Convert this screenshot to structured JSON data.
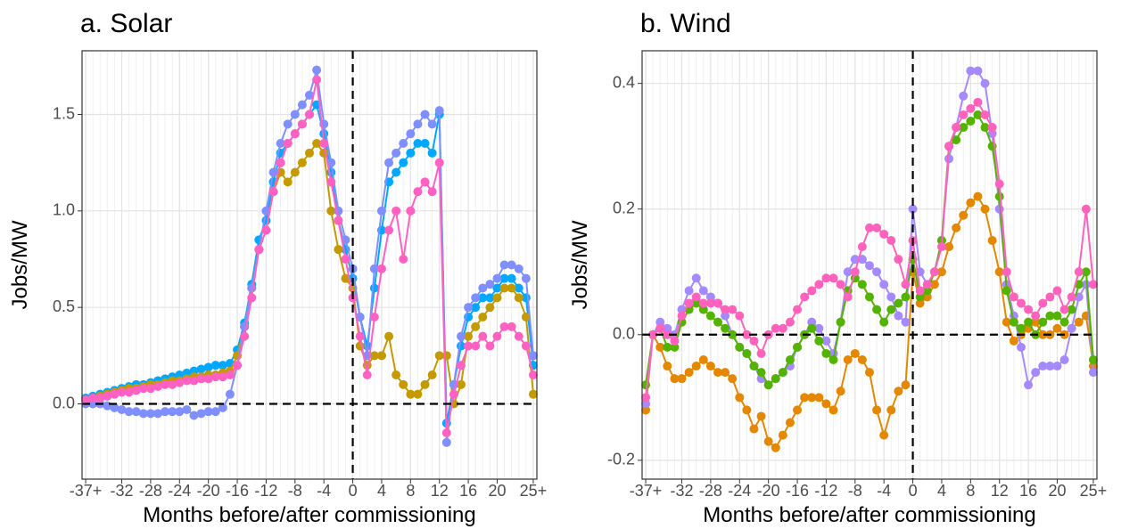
{
  "chart_data": [
    {
      "type": "line",
      "title": "a. Solar",
      "xlabel": "Months before/after commissioning",
      "ylabel": "Jobs/MW",
      "x": [
        -37,
        -36,
        -35,
        -34,
        -33,
        -32,
        -31,
        -30,
        -29,
        -28,
        -27,
        -26,
        -25,
        -24,
        -23,
        -22,
        -21,
        -20,
        -19,
        -18,
        -17,
        -16,
        -15,
        -14,
        -13,
        -12,
        -11,
        -10,
        -9,
        -8,
        -7,
        -6,
        -5,
        -4,
        -3,
        -2,
        -1,
        0,
        1,
        2,
        3,
        4,
        5,
        6,
        7,
        8,
        9,
        10,
        11,
        12,
        13,
        14,
        15,
        16,
        17,
        18,
        19,
        20,
        21,
        22,
        23,
        24,
        25
      ],
      "xlim": [
        -37.5,
        25.5
      ],
      "xticks": [
        {
          "value": -37,
          "label": "-37+"
        },
        -32,
        -28,
        -24,
        -20,
        -16,
        -12,
        -8,
        -4,
        0,
        4,
        8,
        12,
        16,
        20,
        {
          "value": 25,
          "label": "25+"
        }
      ],
      "ylim": [
        -0.39,
        1.83
      ],
      "yticks": [
        {
          "value": 0,
          "label": "0.0"
        },
        0.5,
        {
          "value": 1,
          "label": "1.0"
        },
        1.5
      ],
      "hline": 0,
      "vline": 0,
      "grid": true,
      "series": [
        {
          "color": "#00A9FF",
          "values": [
            0.03,
            0.04,
            0.05,
            0.06,
            0.07,
            0.08,
            0.09,
            0.1,
            0.1,
            0.11,
            0.12,
            0.13,
            0.14,
            0.15,
            0.16,
            0.17,
            0.18,
            0.19,
            0.2,
            0.2,
            0.21,
            0.28,
            0.42,
            0.62,
            0.85,
            0.95,
            1.15,
            1.3,
            1.35,
            1.4,
            1.45,
            1.5,
            1.55,
            1.4,
            1.2,
            0.95,
            0.8,
            0.65,
            0.45,
            0.3,
            0.6,
            0.9,
            1.15,
            1.2,
            1.25,
            1.3,
            1.35,
            1.35,
            1.3,
            1.5,
            -0.1,
            0.1,
            0.3,
            0.45,
            0.5,
            0.55,
            0.55,
            0.6,
            0.65,
            0.65,
            0.6,
            0.55,
            0.2
          ]
        },
        {
          "color": "#C49A00",
          "values": [
            0.02,
            0.03,
            0.04,
            0.05,
            0.06,
            0.07,
            0.08,
            0.08,
            0.09,
            0.1,
            0.1,
            0.11,
            0.12,
            0.12,
            0.13,
            0.14,
            0.14,
            0.15,
            0.15,
            0.16,
            0.17,
            0.25,
            0.4,
            0.6,
            0.8,
            0.9,
            1.1,
            1.2,
            1.15,
            1.2,
            1.25,
            1.3,
            1.35,
            1.3,
            1.0,
            0.8,
            0.65,
            0.6,
            0.3,
            0.2,
            0.25,
            0.25,
            0.35,
            0.15,
            0.1,
            0.05,
            0.05,
            0.1,
            0.15,
            0.25,
            0.25,
            0.0,
            0.1,
            0.35,
            0.4,
            0.45,
            0.5,
            0.55,
            0.6,
            0.6,
            0.55,
            0.45,
            0.05
          ]
        },
        {
          "color": "#7F8FFF",
          "values": [
            0.0,
            0.0,
            0.0,
            -0.01,
            -0.02,
            -0.03,
            -0.04,
            -0.04,
            -0.05,
            -0.05,
            -0.05,
            -0.04,
            -0.04,
            -0.04,
            -0.03,
            -0.06,
            -0.05,
            -0.04,
            -0.04,
            -0.02,
            0.05,
            0.2,
            0.4,
            0.6,
            0.8,
            1.0,
            1.2,
            1.35,
            1.45,
            1.5,
            1.55,
            1.6,
            1.73,
            1.45,
            1.25,
            1.0,
            0.85,
            0.7,
            0.45,
            0.25,
            0.7,
            1.0,
            1.25,
            1.3,
            1.35,
            1.4,
            1.45,
            1.5,
            1.45,
            1.52,
            -0.2,
            0.1,
            0.35,
            0.5,
            0.55,
            0.6,
            0.62,
            0.65,
            0.72,
            0.72,
            0.7,
            0.65,
            0.25
          ]
        },
        {
          "color": "#FF61C3",
          "values": [
            0.02,
            0.03,
            0.03,
            0.04,
            0.05,
            0.06,
            0.06,
            0.07,
            0.08,
            0.08,
            0.09,
            0.1,
            0.1,
            0.11,
            0.12,
            0.12,
            0.13,
            0.13,
            0.14,
            0.14,
            0.15,
            0.2,
            0.35,
            0.55,
            0.8,
            0.9,
            1.1,
            1.25,
            1.35,
            1.4,
            1.45,
            1.5,
            1.68,
            1.35,
            1.15,
            0.95,
            0.75,
            0.55,
            0.35,
            0.15,
            0.45,
            0.7,
            0.9,
            1.0,
            0.75,
            1.0,
            1.1,
            1.15,
            1.1,
            1.25,
            -0.15,
            0.05,
            0.2,
            0.3,
            0.3,
            0.35,
            0.3,
            0.35,
            0.4,
            0.4,
            0.35,
            0.3,
            0.15
          ]
        }
      ]
    },
    {
      "type": "line",
      "title": "b. Wind",
      "xlabel": "Months before/after commissioning",
      "ylabel": "Jobs/MW",
      "x": [
        -37,
        -36,
        -35,
        -34,
        -33,
        -32,
        -31,
        -30,
        -29,
        -28,
        -27,
        -26,
        -25,
        -24,
        -23,
        -22,
        -21,
        -20,
        -19,
        -18,
        -17,
        -16,
        -15,
        -14,
        -13,
        -12,
        -11,
        -10,
        -9,
        -8,
        -7,
        -6,
        -5,
        -4,
        -3,
        -2,
        -1,
        0,
        1,
        2,
        3,
        4,
        5,
        6,
        7,
        8,
        9,
        10,
        11,
        12,
        13,
        14,
        15,
        16,
        17,
        18,
        19,
        20,
        21,
        22,
        23,
        24,
        25
      ],
      "xlim": [
        -37.5,
        25.5
      ],
      "xticks": [
        {
          "value": -37,
          "label": "-37+"
        },
        -32,
        -28,
        -24,
        -20,
        -16,
        -12,
        -8,
        -4,
        0,
        4,
        8,
        12,
        16,
        20,
        {
          "value": 25,
          "label": "25+"
        }
      ],
      "ylim": [
        -0.23,
        0.452
      ],
      "yticks": [
        -0.2,
        {
          "value": 0,
          "label": "0.0"
        },
        0.2,
        0.4
      ],
      "hline": 0,
      "vline": 0,
      "grid": true,
      "series": [
        {
          "color": "#E58700",
          "values": [
            -0.12,
            0.0,
            -0.02,
            -0.05,
            -0.07,
            -0.07,
            -0.06,
            -0.05,
            -0.04,
            -0.05,
            -0.06,
            -0.06,
            -0.07,
            -0.1,
            -0.12,
            -0.15,
            -0.13,
            -0.17,
            -0.18,
            -0.16,
            -0.14,
            -0.12,
            -0.1,
            -0.1,
            -0.1,
            -0.11,
            -0.12,
            -0.09,
            -0.04,
            -0.03,
            -0.04,
            -0.06,
            -0.12,
            -0.16,
            -0.12,
            -0.09,
            -0.08,
            0.1,
            0.05,
            0.06,
            0.08,
            0.1,
            0.14,
            0.17,
            0.19,
            0.21,
            0.22,
            0.2,
            0.15,
            0.1,
            0.02,
            -0.01,
            0.0,
            0.01,
            0.02,
            0.0,
            0.0,
            0.01,
            0.0,
            0.01,
            0.02,
            0.03,
            -0.05
          ]
        },
        {
          "color": "#A58AFF",
          "values": [
            -0.11,
            0.0,
            0.02,
            0.01,
            0.0,
            0.04,
            0.07,
            0.09,
            0.07,
            0.06,
            0.05,
            0.03,
            0.0,
            -0.02,
            -0.03,
            -0.05,
            -0.07,
            -0.08,
            -0.07,
            -0.06,
            -0.05,
            -0.02,
            0.0,
            0.02,
            0.01,
            -0.01,
            -0.03,
            0.02,
            0.1,
            0.12,
            0.12,
            0.11,
            0.1,
            0.08,
            0.06,
            0.03,
            0.02,
            0.2,
            0.1,
            0.08,
            0.1,
            0.15,
            0.28,
            0.33,
            0.38,
            0.42,
            0.42,
            0.4,
            0.32,
            0.2,
            0.08,
            0.03,
            -0.02,
            -0.08,
            -0.06,
            -0.05,
            -0.05,
            -0.05,
            -0.04,
            0.01,
            0.06,
            0.08,
            -0.06
          ]
        },
        {
          "color": "#53B400",
          "values": [
            -0.08,
            0.0,
            0.01,
            -0.02,
            -0.02,
            0.02,
            0.04,
            0.05,
            0.04,
            0.03,
            0.02,
            0.01,
            0.0,
            -0.02,
            -0.03,
            -0.05,
            -0.06,
            -0.08,
            -0.07,
            -0.06,
            -0.04,
            -0.02,
            0.0,
            0.01,
            -0.01,
            -0.03,
            -0.04,
            0.02,
            0.07,
            0.09,
            0.08,
            0.06,
            0.04,
            0.02,
            0.04,
            0.05,
            0.06,
            0.12,
            0.06,
            0.07,
            0.1,
            0.15,
            0.3,
            0.31,
            0.33,
            0.34,
            0.35,
            0.33,
            0.3,
            0.22,
            0.07,
            0.02,
            0.01,
            0.02,
            0.0,
            0.02,
            0.03,
            0.03,
            0.02,
            0.04,
            0.08,
            0.1,
            -0.04
          ]
        },
        {
          "color": "#FF62BC",
          "values": [
            -0.1,
            0.0,
            0.01,
            0.0,
            -0.01,
            0.03,
            0.05,
            0.06,
            0.05,
            0.05,
            0.05,
            0.04,
            0.04,
            0.03,
            0.0,
            -0.01,
            -0.03,
            0.0,
            0.01,
            0.01,
            0.02,
            0.04,
            0.06,
            0.07,
            0.08,
            0.09,
            0.09,
            0.08,
            0.06,
            0.1,
            0.14,
            0.17,
            0.17,
            0.16,
            0.15,
            0.12,
            0.08,
            0.15,
            0.07,
            0.08,
            0.1,
            0.14,
            0.3,
            0.33,
            0.35,
            0.36,
            0.37,
            0.35,
            0.33,
            0.24,
            0.1,
            0.06,
            0.05,
            0.04,
            0.03,
            0.05,
            0.06,
            0.07,
            0.04,
            0.06,
            0.1,
            0.2,
            0.08
          ]
        }
      ]
    }
  ]
}
